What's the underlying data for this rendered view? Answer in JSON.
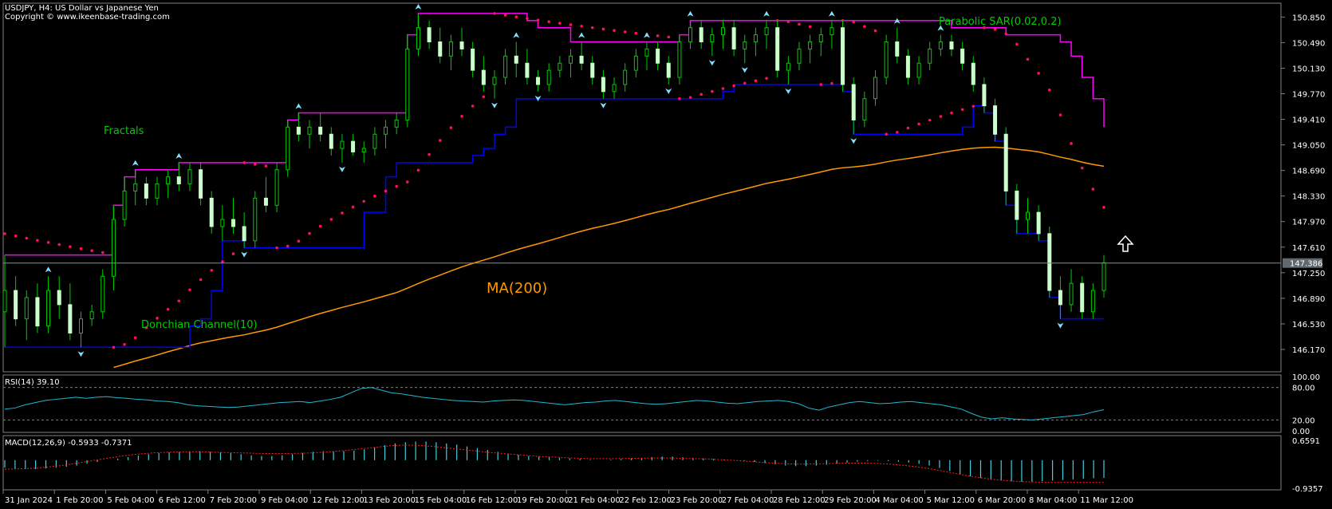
{
  "header": {
    "symbol_line": "USDJPY, H4:  US Dollar vs Japanese Yen",
    "copyright": "Copyright © www.ikeenbase-trading.com"
  },
  "annotations": {
    "fractals": "Fractals",
    "donchian": "Donchian Channel(10)",
    "ma": "MA(200)",
    "sar": "Parabolic SAR(0.02,0.2)"
  },
  "colors": {
    "background": "#000000",
    "bull_candle": "#ccffcc",
    "bear_candle": "#ccffcc",
    "wick": "#00cc00",
    "donchian_upper": "#ff00ff",
    "donchian_lower": "#0000ff",
    "ma": "#ff9900",
    "sar": "#ff1155",
    "fractal": "#80e0ff",
    "rsi": "#20b8d0",
    "macd_hist": "#40d0e0",
    "macd_signal": "#ff2020",
    "annotation": "#00cc00",
    "axis_text": "#ffffff",
    "price_label_bg": "#606870"
  },
  "chart_data": {
    "type": "candlestick",
    "main": {
      "y_ticks": [
        "150.850",
        "150.490",
        "150.130",
        "149.770",
        "149.410",
        "149.050",
        "148.690",
        "148.330",
        "147.970",
        "147.610",
        "147.250",
        "146.890",
        "146.530",
        "146.170"
      ],
      "ylim": [
        145.9,
        151.0
      ],
      "current_price": "147.386",
      "ohlc": [
        [
          146.7,
          147.5,
          146.2,
          147.0
        ],
        [
          147.0,
          147.2,
          146.5,
          146.6
        ],
        [
          146.6,
          147.0,
          146.3,
          146.9
        ],
        [
          146.9,
          147.1,
          146.4,
          146.5
        ],
        [
          146.5,
          147.2,
          146.4,
          147.0
        ],
        [
          147.0,
          147.2,
          146.6,
          146.8
        ],
        [
          146.8,
          147.1,
          146.3,
          146.4
        ],
        [
          146.4,
          146.7,
          146.2,
          146.6
        ],
        [
          146.6,
          146.8,
          146.5,
          146.7
        ],
        [
          146.7,
          147.3,
          146.6,
          147.2
        ],
        [
          147.2,
          148.2,
          147.0,
          148.0
        ],
        [
          148.0,
          148.6,
          147.9,
          148.4
        ],
        [
          148.4,
          148.7,
          148.2,
          148.5
        ],
        [
          148.5,
          148.6,
          148.2,
          148.3
        ],
        [
          148.3,
          148.6,
          148.2,
          148.5
        ],
        [
          148.5,
          148.7,
          148.3,
          148.6
        ],
        [
          148.6,
          148.8,
          148.4,
          148.5
        ],
        [
          148.5,
          148.8,
          148.4,
          148.7
        ],
        [
          148.7,
          148.8,
          148.2,
          148.3
        ],
        [
          148.3,
          148.4,
          147.8,
          147.9
        ],
        [
          147.9,
          148.2,
          147.7,
          148.0
        ],
        [
          148.0,
          148.3,
          147.8,
          147.9
        ],
        [
          147.9,
          148.1,
          147.6,
          147.7
        ],
        [
          147.7,
          148.4,
          147.6,
          148.3
        ],
        [
          148.3,
          148.6,
          148.1,
          148.2
        ],
        [
          148.2,
          148.8,
          148.1,
          148.7
        ],
        [
          148.7,
          149.4,
          148.6,
          149.3
        ],
        [
          149.3,
          149.5,
          149.1,
          149.2
        ],
        [
          149.2,
          149.4,
          149.0,
          149.3
        ],
        [
          149.3,
          149.5,
          149.1,
          149.2
        ],
        [
          149.2,
          149.3,
          148.9,
          149.0
        ],
        [
          149.0,
          149.2,
          148.8,
          149.1
        ],
        [
          149.1,
          149.2,
          148.9,
          148.95
        ],
        [
          148.95,
          149.1,
          148.8,
          149.0
        ],
        [
          149.0,
          149.3,
          148.9,
          149.2
        ],
        [
          149.2,
          149.4,
          149.0,
          149.3
        ],
        [
          149.3,
          149.5,
          149.2,
          149.4
        ],
        [
          149.4,
          150.6,
          149.3,
          150.4
        ],
        [
          150.4,
          150.9,
          150.3,
          150.7
        ],
        [
          150.7,
          150.8,
          150.4,
          150.5
        ],
        [
          150.5,
          150.7,
          150.2,
          150.3
        ],
        [
          150.3,
          150.6,
          150.1,
          150.5
        ],
        [
          150.5,
          150.7,
          150.3,
          150.4
        ],
        [
          150.4,
          150.5,
          150.0,
          150.1
        ],
        [
          150.1,
          150.3,
          149.8,
          149.9
        ],
        [
          149.9,
          150.1,
          149.7,
          150.0
        ],
        [
          150.0,
          150.4,
          149.9,
          150.3
        ],
        [
          150.3,
          150.5,
          150.0,
          150.2
        ],
        [
          150.2,
          150.4,
          149.9,
          150.0
        ],
        [
          150.0,
          150.1,
          149.8,
          149.9
        ],
        [
          149.9,
          150.2,
          149.8,
          150.1
        ],
        [
          150.1,
          150.3,
          150.0,
          150.2
        ],
        [
          150.2,
          150.4,
          150.0,
          150.3
        ],
        [
          150.3,
          150.5,
          150.1,
          150.2
        ],
        [
          150.2,
          150.3,
          149.9,
          150.0
        ],
        [
          150.0,
          150.1,
          149.7,
          149.8
        ],
        [
          149.8,
          150.0,
          149.7,
          149.9
        ],
        [
          149.9,
          150.2,
          149.8,
          150.1
        ],
        [
          150.1,
          150.4,
          150.0,
          150.3
        ],
        [
          150.3,
          150.5,
          150.1,
          150.4
        ],
        [
          150.4,
          150.5,
          150.1,
          150.2
        ],
        [
          150.2,
          150.3,
          149.9,
          150.0
        ],
        [
          150.0,
          150.6,
          149.9,
          150.5
        ],
        [
          150.5,
          150.8,
          150.4,
          150.7
        ],
        [
          150.7,
          150.8,
          150.4,
          150.5
        ],
        [
          150.5,
          150.7,
          150.3,
          150.6
        ],
        [
          150.6,
          150.8,
          150.4,
          150.7
        ],
        [
          150.7,
          150.8,
          150.3,
          150.4
        ],
        [
          150.4,
          150.6,
          150.2,
          150.5
        ],
        [
          150.5,
          150.7,
          150.3,
          150.6
        ],
        [
          150.6,
          150.8,
          150.4,
          150.7
        ],
        [
          150.7,
          150.8,
          150.0,
          150.1
        ],
        [
          150.1,
          150.3,
          149.9,
          150.2
        ],
        [
          150.2,
          150.5,
          150.1,
          150.4
        ],
        [
          150.4,
          150.6,
          150.2,
          150.5
        ],
        [
          150.5,
          150.7,
          150.3,
          150.6
        ],
        [
          150.6,
          150.8,
          150.4,
          150.7
        ],
        [
          150.7,
          150.8,
          149.8,
          149.9
        ],
        [
          149.9,
          150.0,
          149.2,
          149.4
        ],
        [
          149.4,
          149.8,
          149.3,
          149.7
        ],
        [
          149.7,
          150.1,
          149.6,
          150.0
        ],
        [
          150.0,
          150.6,
          149.9,
          150.5
        ],
        [
          150.5,
          150.7,
          150.2,
          150.3
        ],
        [
          150.3,
          150.4,
          149.9,
          150.0
        ],
        [
          150.0,
          150.3,
          149.9,
          150.2
        ],
        [
          150.2,
          150.5,
          150.1,
          150.4
        ],
        [
          150.4,
          150.6,
          150.3,
          150.5
        ],
        [
          150.5,
          150.6,
          150.3,
          150.4
        ],
        [
          150.4,
          150.5,
          150.1,
          150.2
        ],
        [
          150.2,
          150.3,
          149.8,
          149.9
        ],
        [
          149.9,
          150.0,
          149.5,
          149.6
        ],
        [
          149.6,
          149.7,
          149.1,
          149.2
        ],
        [
          149.2,
          149.3,
          148.2,
          148.4
        ],
        [
          148.4,
          148.5,
          147.8,
          148.0
        ],
        [
          148.0,
          148.3,
          147.8,
          148.1
        ],
        [
          148.1,
          148.2,
          147.7,
          147.8
        ],
        [
          147.8,
          147.9,
          146.9,
          147.0
        ],
        [
          147.0,
          147.2,
          146.6,
          146.8
        ],
        [
          146.8,
          147.3,
          146.7,
          147.1
        ],
        [
          147.1,
          147.2,
          146.6,
          146.7
        ],
        [
          146.7,
          147.1,
          146.6,
          147.0
        ],
        [
          147.0,
          147.5,
          146.9,
          147.39
        ]
      ]
    },
    "x_ticks": [
      "31 Jan 2024",
      "1 Feb 20:00",
      "5 Feb 04:00",
      "6 Feb 12:00",
      "7 Feb 20:00",
      "9 Feb 04:00",
      "12 Feb 12:00",
      "13 Feb 20:00",
      "15 Feb 04:00",
      "16 Feb 12:00",
      "19 Feb 20:00",
      "21 Feb 04:00",
      "22 Feb 12:00",
      "23 Feb 20:00",
      "27 Feb 04:00",
      "28 Feb 12:00",
      "29 Feb 20:00",
      "4 Mar 04:00",
      "5 Mar 12:00",
      "6 Mar 20:00",
      "8 Mar 04:00",
      "11 Mar 12:00"
    ],
    "rsi": {
      "label": "RSI(14) 39.10",
      "y_ticks": [
        "100.00",
        "80.00",
        "20.00",
        "0.00"
      ],
      "levels": [
        20,
        80
      ],
      "values": [
        40,
        42,
        48,
        52,
        56,
        58,
        60,
        62,
        60,
        62,
        63,
        61,
        60,
        58,
        57,
        55,
        54,
        52,
        48,
        46,
        45,
        44,
        43,
        44,
        46,
        48,
        50,
        52,
        53,
        54,
        52,
        55,
        58,
        62,
        70,
        78,
        80,
        75,
        70,
        68,
        65,
        62,
        60,
        58,
        56,
        55,
        54,
        53,
        55,
        56,
        57,
        56,
        54,
        52,
        50,
        48,
        50,
        52,
        53,
        55,
        56,
        54,
        52,
        50,
        49,
        50,
        52,
        54,
        56,
        55,
        53,
        51,
        50,
        52,
        54,
        55,
        56,
        54,
        50,
        42,
        38,
        44,
        48,
        52,
        54,
        52,
        50,
        51,
        53,
        54,
        52,
        50,
        48,
        44,
        40,
        32,
        25,
        22,
        24,
        22,
        21,
        20,
        22,
        24,
        26,
        28,
        30,
        35,
        39
      ]
    },
    "macd": {
      "label": "MACD(12,26,9) -0.5933 -0.7371",
      "y_ticks": [
        "0.6591",
        "-0.9357"
      ],
      "ylim": [
        -0.9357,
        0.6591
      ],
      "histogram": [
        -0.25,
        -0.28,
        -0.3,
        -0.3,
        -0.28,
        -0.25,
        -0.22,
        -0.18,
        -0.12,
        -0.06,
        0.0,
        0.05,
        0.1,
        0.15,
        0.2,
        0.24,
        0.26,
        0.28,
        0.3,
        0.3,
        0.28,
        0.26,
        0.24,
        0.2,
        0.16,
        0.14,
        0.14,
        0.16,
        0.2,
        0.24,
        0.28,
        0.3,
        0.3,
        0.3,
        0.32,
        0.36,
        0.42,
        0.5,
        0.56,
        0.6,
        0.62,
        0.62,
        0.6,
        0.56,
        0.52,
        0.46,
        0.4,
        0.34,
        0.28,
        0.22,
        0.18,
        0.14,
        0.12,
        0.1,
        0.08,
        0.06,
        0.04,
        0.02,
        0.0,
        0.02,
        0.04,
        0.06,
        0.08,
        0.1,
        0.12,
        0.12,
        0.1,
        0.08,
        0.06,
        0.04,
        0.02,
        0.0,
        -0.02,
        -0.06,
        -0.1,
        -0.14,
        -0.18,
        -0.2,
        -0.2,
        -0.18,
        -0.15,
        -0.12,
        -0.08,
        -0.05,
        -0.03,
        -0.02,
        -0.03,
        -0.05,
        -0.08,
        -0.12,
        -0.18,
        -0.26,
        -0.36,
        -0.46,
        -0.54,
        -0.6,
        -0.65,
        -0.68,
        -0.7,
        -0.72,
        -0.72,
        -0.7,
        -0.68,
        -0.66,
        -0.64,
        -0.62,
        -0.6,
        -0.59
      ],
      "signal": [
        -0.3,
        -0.29,
        -0.28,
        -0.26,
        -0.22,
        -0.18,
        -0.12,
        -0.06,
        0.0,
        0.06,
        0.12,
        0.17,
        0.21,
        0.24,
        0.26,
        0.27,
        0.28,
        0.28,
        0.27,
        0.26,
        0.25,
        0.24,
        0.23,
        0.22,
        0.22,
        0.22,
        0.23,
        0.24,
        0.26,
        0.29,
        0.32,
        0.36,
        0.4,
        0.44,
        0.48,
        0.5,
        0.5,
        0.48,
        0.45,
        0.41,
        0.37,
        0.33,
        0.29,
        0.25,
        0.22,
        0.19,
        0.16,
        0.13,
        0.11,
        0.09,
        0.07,
        0.06,
        0.05,
        0.05,
        0.05,
        0.06,
        0.06,
        0.07,
        0.07,
        0.07,
        0.06,
        0.05,
        0.04,
        0.02,
        0.0,
        -0.02,
        -0.05,
        -0.08,
        -0.1,
        -0.12,
        -0.13,
        -0.13,
        -0.12,
        -0.11,
        -0.1,
        -0.1,
        -0.1,
        -0.11,
        -0.13,
        -0.16,
        -0.2,
        -0.25,
        -0.31,
        -0.38,
        -0.45,
        -0.52,
        -0.58,
        -0.63,
        -0.67,
        -0.7,
        -0.72,
        -0.73,
        -0.74,
        -0.74,
        -0.74,
        -0.74,
        -0.74,
        -0.74
      ]
    }
  }
}
